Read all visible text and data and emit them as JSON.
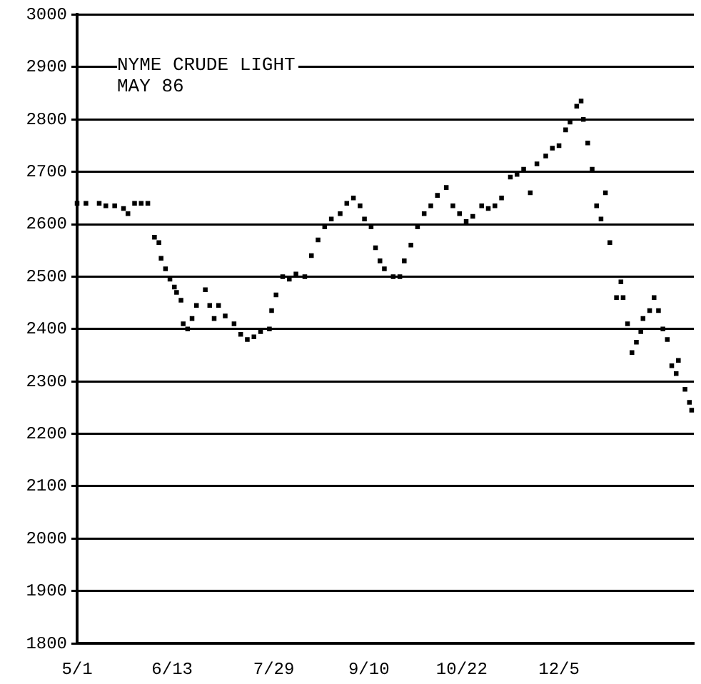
{
  "chart_data": {
    "type": "scatter",
    "title": "NYME CRUDE LIGHT",
    "subtitle": "MAY 86",
    "categories": [
      "5/1",
      null,
      null,
      null,
      null,
      null,
      null,
      null,
      null,
      null,
      null,
      null,
      null,
      null,
      null,
      null,
      null,
      null,
      null,
      null,
      null,
      null,
      null,
      null,
      null,
      null,
      null,
      null,
      null,
      null,
      null,
      null,
      null,
      null,
      null,
      null,
      null,
      null,
      null,
      null,
      null,
      null,
      null,
      "6/13",
      null,
      null,
      null,
      null,
      null,
      null,
      null,
      null,
      null,
      null,
      null,
      null,
      null,
      null,
      null,
      null,
      null,
      null,
      null,
      null,
      null,
      null,
      null,
      null,
      null,
      null,
      null,
      null,
      null,
      null,
      null,
      null,
      null,
      null,
      null,
      null,
      null,
      null,
      null,
      null,
      null,
      null,
      null,
      null,
      null,
      "7/29",
      null,
      null,
      null,
      null,
      null,
      null,
      null,
      null,
      null,
      null,
      null,
      null,
      null,
      null,
      null,
      null,
      null,
      null,
      null,
      null,
      null,
      null,
      null,
      null,
      null,
      null,
      null,
      null,
      null,
      null,
      null,
      null,
      null,
      null,
      null,
      null,
      null,
      null,
      null,
      null,
      null,
      null,
      "9/10",
      null,
      null,
      null,
      null,
      null,
      null,
      null,
      null,
      null,
      null,
      null,
      null,
      null,
      null,
      null,
      null,
      null,
      null,
      null,
      null,
      null,
      null,
      null,
      null,
      null,
      null,
      null,
      null,
      null,
      null,
      null,
      null,
      null,
      null,
      null,
      null,
      null,
      null,
      null,
      null,
      null,
      "10/22",
      null,
      null,
      null,
      null,
      null,
      null,
      null,
      null,
      null,
      null,
      null,
      null,
      null,
      null,
      null,
      null,
      null,
      null,
      null,
      null,
      null,
      null,
      null,
      null,
      null,
      null,
      null,
      null,
      null,
      null,
      null,
      null,
      null,
      null,
      null,
      null,
      null,
      null,
      null,
      null,
      null,
      null,
      null,
      "12/5",
      null,
      null,
      null,
      null,
      null,
      null,
      null,
      null,
      null,
      null,
      null,
      null,
      null,
      null,
      null,
      null,
      null,
      null,
      null,
      null,
      null,
      null,
      null,
      null,
      null,
      null,
      null,
      null,
      null,
      null,
      null,
      null,
      null,
      null,
      null,
      null,
      null,
      null,
      null,
      null,
      null,
      null,
      null,
      null,
      null,
      null,
      null,
      null,
      null,
      null,
      null,
      null,
      null,
      null,
      null,
      null,
      null,
      null,
      null,
      null,
      null
    ],
    "series": [
      {
        "color": "#000000",
        "values": [
          2640,
          null,
          null,
          null,
          2640,
          null,
          null,
          null,
          null,
          null,
          2640,
          null,
          null,
          2635,
          null,
          null,
          null,
          2635,
          null,
          null,
          null,
          2630,
          null,
          2620,
          null,
          null,
          2640,
          null,
          null,
          2640,
          null,
          null,
          2640,
          null,
          null,
          2575,
          null,
          2565,
          2535,
          null,
          2515,
          null,
          2495,
          null,
          2480,
          2470,
          null,
          2455,
          2410,
          null,
          2400,
          null,
          2420,
          null,
          2445,
          null,
          null,
          null,
          2475,
          null,
          2445,
          null,
          2420,
          null,
          2445,
          null,
          null,
          2425,
          null,
          null,
          null,
          2410,
          null,
          null,
          2390,
          null,
          null,
          2380,
          null,
          null,
          2385,
          null,
          null,
          2395,
          null,
          null,
          null,
          2400,
          2435,
          null,
          2465,
          null,
          null,
          2500,
          null,
          null,
          2495,
          null,
          null,
          2505,
          null,
          null,
          null,
          2500,
          null,
          null,
          2540,
          null,
          null,
          2570,
          null,
          null,
          2595,
          null,
          null,
          2610,
          null,
          null,
          null,
          2620,
          null,
          null,
          2640,
          null,
          null,
          2650,
          null,
          null,
          2635,
          null,
          2610,
          null,
          null,
          2595,
          null,
          2555,
          null,
          2530,
          null,
          2515,
          null,
          null,
          null,
          2500,
          null,
          null,
          2500,
          null,
          2530,
          null,
          null,
          2560,
          null,
          null,
          2595,
          null,
          null,
          2620,
          null,
          null,
          2635,
          null,
          null,
          2655,
          null,
          null,
          null,
          2670,
          null,
          null,
          2635,
          null,
          null,
          2620,
          null,
          null,
          2605,
          null,
          null,
          2615,
          null,
          null,
          null,
          2635,
          null,
          null,
          2630,
          null,
          null,
          2635,
          null,
          null,
          2650,
          null,
          null,
          null,
          2690,
          null,
          null,
          2695,
          null,
          null,
          2705,
          null,
          null,
          2660,
          null,
          null,
          2715,
          null,
          null,
          null,
          2730,
          null,
          null,
          2745,
          null,
          null,
          2750,
          null,
          null,
          2780,
          null,
          2795,
          null,
          null,
          2825,
          null,
          2835,
          2800,
          null,
          2755,
          null,
          2705,
          null,
          2635,
          null,
          2610,
          null,
          2660,
          null,
          2565,
          null,
          null,
          2460,
          null,
          2490,
          2460,
          null,
          2410,
          null,
          2355,
          null,
          2375,
          null,
          2395,
          2420,
          null,
          null,
          2435,
          null,
          2460,
          null,
          2435,
          null,
          2400,
          null,
          2380,
          null,
          2330,
          null,
          2315,
          2340,
          null,
          null,
          2285,
          null,
          2260,
          2245,
          null
        ]
      }
    ],
    "ylim": [
      1800,
      3000
    ],
    "yticks": [
      1800,
      1900,
      2000,
      2100,
      2200,
      2300,
      2400,
      2500,
      2600,
      2700,
      2800,
      2900,
      3000
    ],
    "grid": "y",
    "legend": false,
    "marker": "square"
  }
}
